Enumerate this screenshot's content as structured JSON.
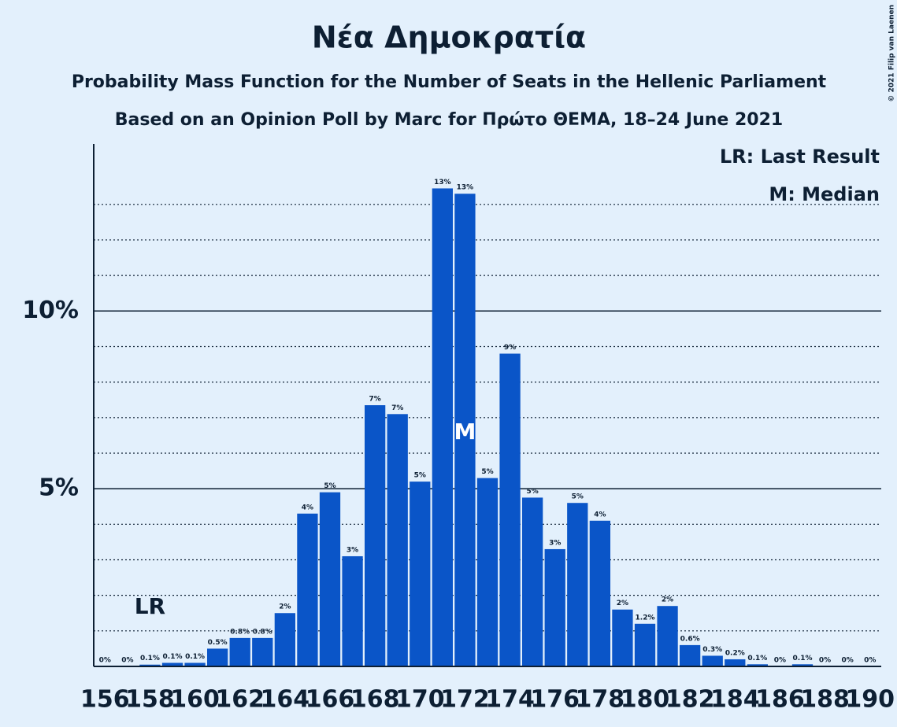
{
  "chart_data": {
    "type": "bar",
    "title": "Νέα Δημοκρατία",
    "subtitle": "Probability Mass Function for the Number of Seats in the Hellenic Parliament",
    "subtitle2": "Based on an Opinion Poll by Marc for Πρώτο ΘΕΜΑ, 18–24 June 2021",
    "copyright": "© 2021 Filip van Laenen",
    "legend": [
      "LR: Last Result",
      "M: Median"
    ],
    "last_result": {
      "label": "LR",
      "seat": 158
    },
    "median": {
      "label": "M",
      "seat": 172
    },
    "color": "#0a55c8",
    "x": [
      156,
      157,
      158,
      159,
      160,
      161,
      162,
      163,
      164,
      165,
      166,
      167,
      168,
      169,
      170,
      171,
      172,
      173,
      174,
      175,
      176,
      177,
      178,
      179,
      180,
      181,
      182,
      183,
      184,
      185,
      186,
      187,
      188,
      189,
      190
    ],
    "values": [
      0,
      0,
      0.05,
      0.1,
      0.1,
      0.5,
      0.8,
      0.8,
      1.5,
      4.3,
      4.9,
      3.1,
      7.35,
      7.1,
      5.2,
      13.45,
      13.3,
      5.3,
      8.8,
      4.75,
      3.3,
      4.6,
      4.1,
      1.6,
      1.2,
      1.7,
      0.6,
      0.3,
      0.2,
      0.06,
      0,
      0.06,
      0,
      0,
      0
    ],
    "value_labels": [
      "0%",
      "0%",
      "0.1%",
      "0.1%",
      "0.1%",
      "0.5%",
      "0.8%",
      "0.8%",
      "2%",
      "4%",
      "5%",
      "3%",
      "7%",
      "7%",
      "5%",
      "13%",
      "13%",
      "5%",
      "9%",
      "5%",
      "3%",
      "5%",
      "4%",
      "2%",
      "1.2%",
      "2%",
      "0.6%",
      "0.3%",
      "0.2%",
      "0.1%",
      "0%",
      "0.1%",
      "0%",
      "0%",
      "0%"
    ],
    "xlim": [
      155.5,
      190.5
    ],
    "xticks": [
      156,
      158,
      160,
      162,
      164,
      166,
      168,
      170,
      172,
      174,
      176,
      178,
      180,
      182,
      184,
      186,
      188,
      190
    ],
    "ylim": [
      0,
      14.7
    ],
    "yticks": [
      {
        "value": 5,
        "label": "5%"
      },
      {
        "value": 10,
        "label": "10%"
      }
    ],
    "minor_yticks": [
      1,
      2,
      3,
      4,
      6,
      7,
      8,
      9,
      11,
      12,
      13
    ],
    "grid": true
  }
}
